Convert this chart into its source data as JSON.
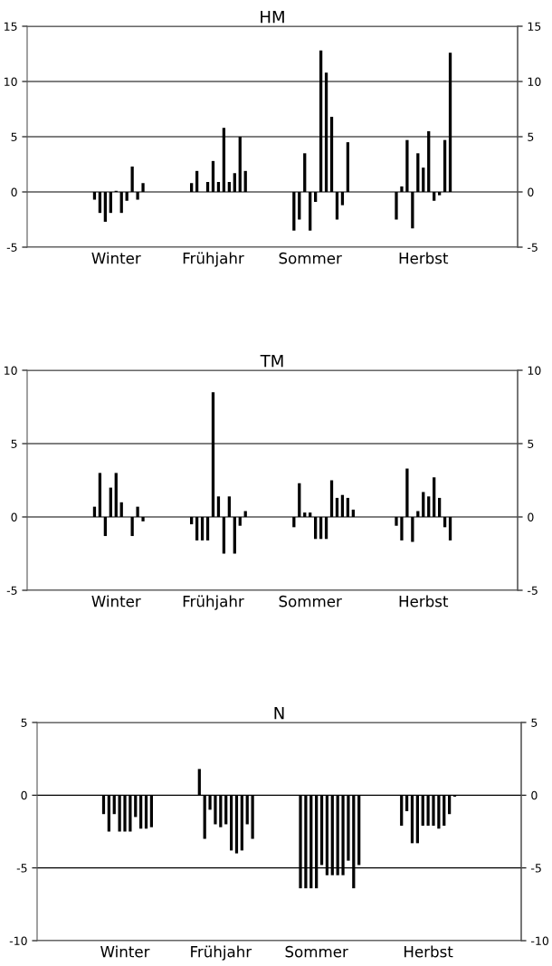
{
  "chart_data": [
    {
      "type": "bar",
      "title": "HM",
      "color": "#000000",
      "grid": "y",
      "categories": [
        null,
        null,
        null,
        null,
        null,
        null,
        null,
        null,
        null,
        null,
        null,
        null,
        null,
        null,
        null,
        null,
        "Winter",
        null,
        null,
        null,
        null,
        null,
        null,
        null,
        null,
        null,
        null,
        null,
        null,
        null,
        null,
        null,
        null,
        null,
        "Frühjahr",
        null,
        null,
        null,
        null,
        null,
        null,
        null,
        null,
        null,
        null,
        null,
        null,
        null,
        null,
        null,
        null,
        null,
        "Sommer",
        null,
        null,
        null,
        null,
        null,
        null,
        null,
        null,
        null,
        null,
        null,
        null,
        null,
        null,
        null,
        null,
        null,
        null,
        null,
        null,
        "Herbst",
        null,
        null,
        null,
        null,
        null,
        null,
        null,
        null,
        null,
        null,
        null,
        null,
        null,
        null,
        null,
        null,
        null
      ],
      "values": [
        null,
        null,
        null,
        null,
        null,
        null,
        null,
        null,
        null,
        null,
        null,
        null,
        -0.7,
        -1.9,
        -2.7,
        -1.9,
        0.1,
        -1.9,
        -0.8,
        2.3,
        -0.7,
        0.8,
        null,
        null,
        null,
        null,
        null,
        null,
        null,
        null,
        0.8,
        1.9,
        null,
        0.9,
        2.8,
        0.9,
        5.8,
        0.9,
        1.7,
        5.0,
        1.9,
        null,
        null,
        null,
        null,
        null,
        null,
        null,
        null,
        -3.5,
        -2.5,
        3.5,
        -3.5,
        -0.9,
        12.8,
        10.8,
        6.8,
        -2.5,
        -1.2,
        4.5,
        null,
        null,
        null,
        null,
        null,
        null,
        null,
        null,
        -2.5,
        0.5,
        4.7,
        -3.3,
        3.5,
        2.2,
        5.5,
        -0.8,
        -0.3,
        4.7,
        12.6,
        null,
        null,
        null,
        null,
        null,
        null,
        null,
        null,
        null,
        null,
        null,
        null
      ],
      "ylim": [
        -5,
        15
      ],
      "yticks": [
        -5,
        0,
        5,
        10,
        15
      ],
      "y2lim": [
        -5,
        15
      ],
      "y2ticks": [
        -5,
        0,
        5,
        10,
        15
      ]
    },
    {
      "type": "bar",
      "title": "TM",
      "color": "#000000",
      "grid": "y",
      "categories": [
        null,
        null,
        null,
        null,
        null,
        null,
        null,
        null,
        null,
        null,
        null,
        null,
        null,
        null,
        null,
        null,
        "Winter",
        null,
        null,
        null,
        null,
        null,
        null,
        null,
        null,
        null,
        null,
        null,
        null,
        null,
        null,
        null,
        null,
        null,
        "Frühjahr",
        null,
        null,
        null,
        null,
        null,
        null,
        null,
        null,
        null,
        null,
        null,
        null,
        null,
        null,
        null,
        null,
        null,
        "Sommer",
        null,
        null,
        null,
        null,
        null,
        null,
        null,
        null,
        null,
        null,
        null,
        null,
        null,
        null,
        null,
        null,
        null,
        null,
        null,
        null,
        "Herbst",
        null,
        null,
        null,
        null,
        null,
        null,
        null,
        null,
        null,
        null,
        null,
        null,
        null,
        null,
        null,
        null,
        null
      ],
      "values": [
        null,
        null,
        null,
        null,
        null,
        null,
        null,
        null,
        null,
        null,
        null,
        null,
        0.7,
        3.0,
        -1.3,
        2.0,
        3.0,
        1.0,
        null,
        -1.3,
        0.7,
        -0.3,
        null,
        null,
        null,
        null,
        null,
        null,
        null,
        null,
        -0.5,
        -1.6,
        -1.6,
        -1.6,
        8.5,
        1.4,
        -2.5,
        1.4,
        -2.5,
        -0.6,
        0.4,
        null,
        null,
        null,
        null,
        null,
        null,
        null,
        null,
        -0.7,
        2.3,
        0.3,
        0.3,
        -1.5,
        -1.5,
        -1.5,
        2.5,
        1.3,
        1.5,
        1.3,
        0.5,
        null,
        null,
        null,
        null,
        null,
        null,
        null,
        -0.6,
        -1.6,
        3.3,
        -1.7,
        0.4,
        1.7,
        1.4,
        2.7,
        1.3,
        -0.7,
        -1.6,
        null,
        null,
        null,
        null,
        null,
        null,
        null,
        null,
        null,
        null,
        null,
        null
      ],
      "ylim": [
        -5,
        10
      ],
      "yticks": [
        -5,
        0,
        5,
        10
      ],
      "y2lim": [
        -5,
        10
      ],
      "y2ticks": [
        -5,
        0,
        5,
        10
      ]
    },
    {
      "type": "bar",
      "title": "N",
      "color": "#000000",
      "grid": "y",
      "categories": [
        null,
        null,
        null,
        null,
        null,
        null,
        null,
        null,
        null,
        null,
        null,
        null,
        null,
        null,
        null,
        null,
        "Winter",
        null,
        null,
        null,
        null,
        null,
        null,
        null,
        null,
        null,
        null,
        null,
        null,
        null,
        null,
        null,
        null,
        null,
        "Frühjahr",
        null,
        null,
        null,
        null,
        null,
        null,
        null,
        null,
        null,
        null,
        null,
        null,
        null,
        null,
        null,
        null,
        null,
        "Sommer",
        null,
        null,
        null,
        null,
        null,
        null,
        null,
        null,
        null,
        null,
        null,
        null,
        null,
        null,
        null,
        null,
        null,
        null,
        null,
        null,
        "Herbst",
        null,
        null,
        null,
        null,
        null,
        null,
        null,
        null,
        null,
        null,
        null,
        null,
        null,
        null,
        null,
        null,
        null
      ],
      "values": [
        null,
        null,
        null,
        null,
        null,
        null,
        null,
        null,
        null,
        null,
        null,
        null,
        -1.3,
        -2.5,
        -1.3,
        -2.5,
        -2.5,
        -2.5,
        -1.5,
        -2.3,
        -2.3,
        -2.2,
        null,
        null,
        null,
        null,
        null,
        null,
        null,
        null,
        1.8,
        -3.0,
        -1.0,
        -2.0,
        -2.2,
        -2.0,
        -3.8,
        -4.0,
        -3.8,
        -2.0,
        -3.0,
        null,
        null,
        null,
        null,
        null,
        null,
        null,
        null,
        -6.4,
        -6.4,
        -6.4,
        -6.4,
        -4.8,
        -5.5,
        -5.5,
        -5.5,
        -5.5,
        -4.5,
        -6.4,
        -4.8,
        null,
        null,
        null,
        null,
        null,
        null,
        null,
        -2.1,
        -1.1,
        -3.3,
        -3.3,
        -2.1,
        -2.1,
        -2.1,
        -2.3,
        -2.1,
        -1.3,
        -0.1,
        null,
        null,
        null,
        null,
        null,
        null,
        null,
        null,
        null,
        null,
        null,
        null
      ],
      "ylim": [
        -10,
        5
      ],
      "yticks": [
        -10,
        -5,
        0,
        5
      ],
      "y2lim": [
        -10,
        5
      ],
      "y2ticks": [
        -10,
        -5,
        0,
        5
      ]
    }
  ]
}
